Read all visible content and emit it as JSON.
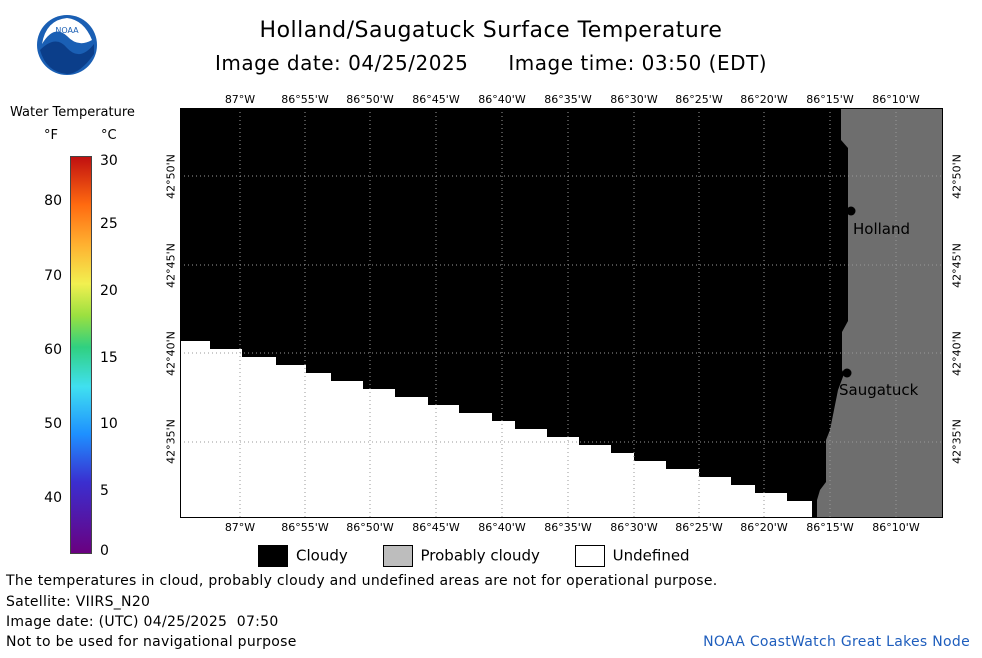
{
  "header": {
    "title": "Holland/Saugatuck Surface Temperature",
    "image_date": "Image date: 04/25/2025",
    "image_time": "Image time: 03:50 (EDT)"
  },
  "logo": {
    "label": "NOAA"
  },
  "scale": {
    "title": "Water Temperature",
    "unit_f": "°F",
    "unit_c": "°C",
    "ticks_f": [
      "80",
      "70",
      "60",
      "50",
      "40"
    ],
    "ticks_c": [
      "30",
      "25",
      "20",
      "15",
      "10",
      "5",
      "0"
    ]
  },
  "map": {
    "lon_labels": [
      "87°W",
      "86°55'W",
      "86°50'W",
      "86°45'W",
      "86°40'W",
      "86°35'W",
      "86°30'W",
      "86°25'W",
      "86°20'W",
      "86°15'W",
      "86°10'W"
    ],
    "lat_labels": [
      "42°50'N",
      "42°45'N",
      "42°40'N",
      "42°35'N"
    ],
    "places": [
      {
        "name": "Holland"
      },
      {
        "name": "Saugatuck"
      }
    ],
    "colors": {
      "cloudy": "#000000",
      "probably_cloudy": "#6e6e6e",
      "undefined": "#ffffff"
    }
  },
  "legend": {
    "cloudy": "Cloudy",
    "probably_cloudy": "Probably cloudy",
    "undefined": "Undefined"
  },
  "footer": {
    "note": "The temperatures in cloud, probably cloudy and undefined areas are not for operational purpose.",
    "satellite": "Satellite: VIIRS_N20",
    "utc_date": "Image date: (UTC) 04/25/2025  07:50",
    "disclaimer": "Not to be used for navigational purpose",
    "node": "NOAA CoastWatch Great Lakes Node"
  }
}
